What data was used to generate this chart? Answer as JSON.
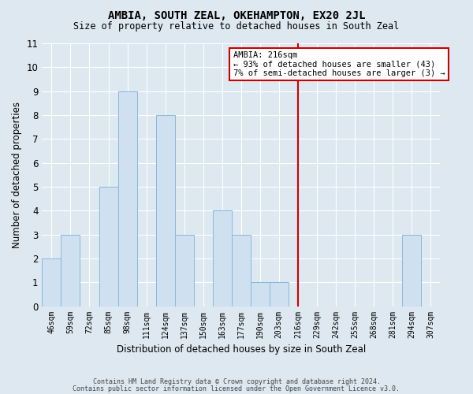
{
  "title": "AMBIA, SOUTH ZEAL, OKEHAMPTON, EX20 2JL",
  "subtitle": "Size of property relative to detached houses in South Zeal",
  "xlabel": "Distribution of detached houses by size in South Zeal",
  "ylabel": "Number of detached properties",
  "footnote1": "Contains HM Land Registry data © Crown copyright and database right 2024.",
  "footnote2": "Contains public sector information licensed under the Open Government Licence v3.0.",
  "bar_labels": [
    "46sqm",
    "59sqm",
    "72sqm",
    "85sqm",
    "98sqm",
    "111sqm",
    "124sqm",
    "137sqm",
    "150sqm",
    "163sqm",
    "177sqm",
    "190sqm",
    "203sqm",
    "216sqm",
    "229sqm",
    "242sqm",
    "255sqm",
    "268sqm",
    "281sqm",
    "294sqm",
    "307sqm"
  ],
  "bar_values": [
    2,
    3,
    0,
    5,
    9,
    0,
    8,
    3,
    0,
    4,
    3,
    1,
    1,
    0,
    0,
    0,
    0,
    0,
    0,
    3,
    0
  ],
  "bar_color": "#cfe1f0",
  "bar_edge_color": "#88b8d8",
  "marker_index": 13,
  "marker_label": "AMBIA: 216sqm",
  "marker_line_color": "#cc0000",
  "legend_text1": "← 93% of detached houses are smaller (43)",
  "legend_text2": "7% of semi-detached houses are larger (3) →",
  "legend_box_color": "#cc0000",
  "ylim": [
    0,
    11
  ],
  "yticks": [
    0,
    1,
    2,
    3,
    4,
    5,
    6,
    7,
    8,
    9,
    10,
    11
  ],
  "background_color": "#dde8f0",
  "plot_bg_color": "#dde8f0",
  "grid_color": "#ffffff"
}
